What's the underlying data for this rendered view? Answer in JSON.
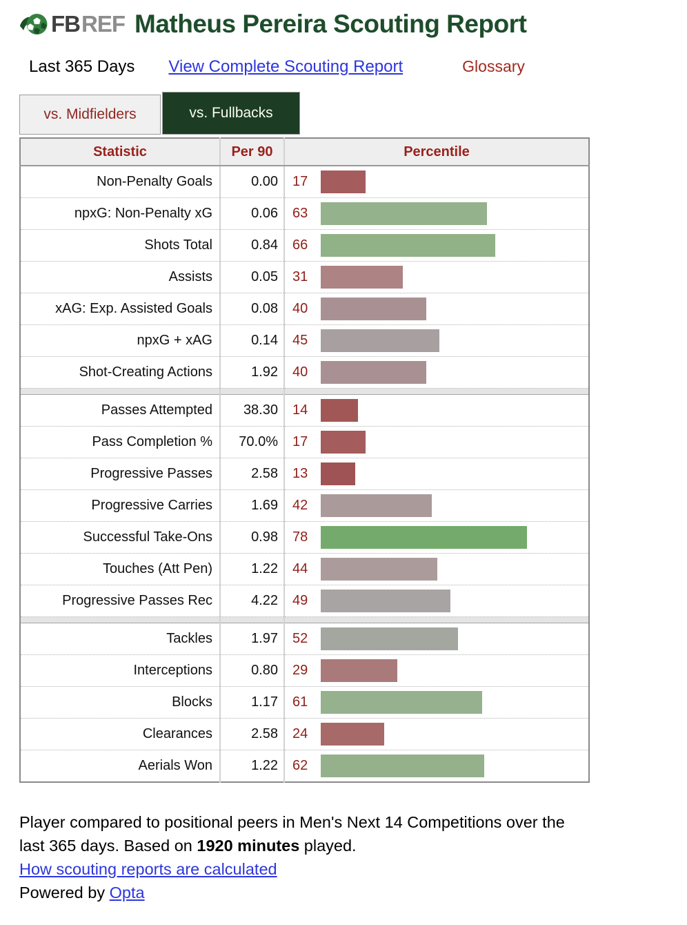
{
  "header": {
    "logo_fb": "FB",
    "logo_ref": "REF",
    "title": "Matheus Pereira Scouting Report"
  },
  "subheader": {
    "period_label": "Last 365 Days",
    "complete_report_link": "View Complete Scouting Report",
    "glossary_link": "Glossary"
  },
  "tabs": [
    {
      "label": "vs. Midfielders",
      "active": false
    },
    {
      "label": "vs. Fullbacks",
      "active": true
    }
  ],
  "colors": {
    "title_green": "#1e4d2b",
    "active_tab_green": "#1c3d24",
    "header_red": "#9b211b",
    "link_blue": "#2d35dd",
    "glossary_red": "#a1291f"
  },
  "chart_data": {
    "type": "bar",
    "title": "Matheus Pereira Scouting Report — vs. Fullbacks",
    "columns": [
      "Statistic",
      "Per 90",
      "Percentile"
    ],
    "groups": [
      {
        "rows": [
          {
            "stat": "Non-Penalty Goals",
            "per90": "0.00",
            "percentile": 17,
            "bar_color": "#a45c5c"
          },
          {
            "stat": "npxG: Non-Penalty xG",
            "per90": "0.06",
            "percentile": 63,
            "bar_color": "#94b28b"
          },
          {
            "stat": "Shots Total",
            "per90": "0.84",
            "percentile": 66,
            "bar_color": "#91b287"
          },
          {
            "stat": "Assists",
            "per90": "0.05",
            "percentile": 31,
            "bar_color": "#ad8384"
          },
          {
            "stat": "xAG: Exp. Assisted Goals",
            "per90": "0.08",
            "percentile": 40,
            "bar_color": "#a99193"
          },
          {
            "stat": "npxG + xAG",
            "per90": "0.14",
            "percentile": 45,
            "bar_color": "#a8a0a0"
          },
          {
            "stat": "Shot-Creating Actions",
            "per90": "1.92",
            "percentile": 40,
            "bar_color": "#a99193"
          }
        ]
      },
      {
        "rows": [
          {
            "stat": "Passes Attempted",
            "per90": "38.30",
            "percentile": 14,
            "bar_color": "#a25757"
          },
          {
            "stat": "Pass Completion %",
            "per90": "70.0%",
            "percentile": 17,
            "bar_color": "#a45c5c"
          },
          {
            "stat": "Progressive Passes",
            "per90": "2.58",
            "percentile": 13,
            "bar_color": "#a05354"
          },
          {
            "stat": "Progressive Carries",
            "per90": "1.69",
            "percentile": 42,
            "bar_color": "#aa9a9a"
          },
          {
            "stat": "Successful Take-Ons",
            "per90": "0.98",
            "percentile": 78,
            "bar_color": "#74ab6c"
          },
          {
            "stat": "Touches (Att Pen)",
            "per90": "1.22",
            "percentile": 44,
            "bar_color": "#ab9c9b"
          },
          {
            "stat": "Progressive Passes Rec",
            "per90": "4.22",
            "percentile": 49,
            "bar_color": "#a9a4a4"
          }
        ]
      },
      {
        "rows": [
          {
            "stat": "Tackles",
            "per90": "1.97",
            "percentile": 52,
            "bar_color": "#a3a7a0"
          },
          {
            "stat": "Interceptions",
            "per90": "0.80",
            "percentile": 29,
            "bar_color": "#aa7a7a"
          },
          {
            "stat": "Blocks",
            "per90": "1.17",
            "percentile": 61,
            "bar_color": "#96b18d"
          },
          {
            "stat": "Clearances",
            "per90": "2.58",
            "percentile": 24,
            "bar_color": "#a76a69"
          },
          {
            "stat": "Aerials Won",
            "per90": "1.22",
            "percentile": 62,
            "bar_color": "#95b18c"
          }
        ]
      }
    ],
    "percentile_axis": [
      0,
      100
    ]
  },
  "footer": {
    "line1": "Player compared to positional peers in Men's Next 14 Competitions over the",
    "line2_pre": "last 365 days. Based on ",
    "line2_bold": "1920 minutes",
    "line2_post": " played.",
    "calc_link": "How scouting reports are calculated",
    "powered_pre": "Powered by ",
    "powered_link": "Opta"
  }
}
